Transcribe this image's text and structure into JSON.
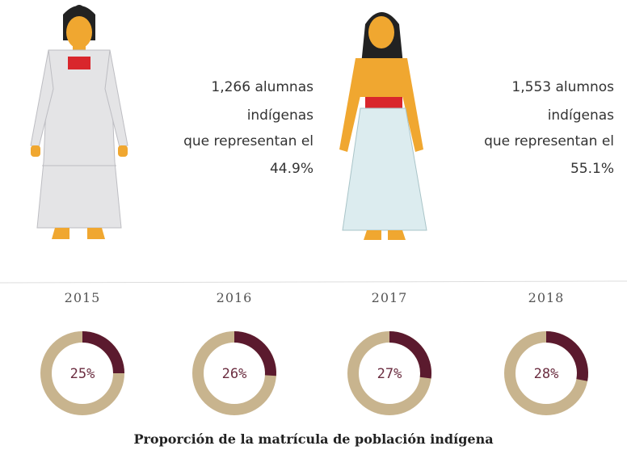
{
  "women": {
    "lines": [
      "1,266 alumnas",
      "indígenas",
      "que representan el",
      "44.9%"
    ]
  },
  "men": {
    "lines": [
      "1,553 alumnos",
      "indígenas",
      "que representan el",
      "55.1%"
    ]
  },
  "chart_data": [
    {
      "type": "donut",
      "title": "2015",
      "values": [
        25
      ],
      "value_labels": [
        "25%"
      ],
      "color": "#5b1a2e",
      "track_color": "#c8b48e"
    },
    {
      "type": "donut",
      "title": "2016",
      "values": [
        26
      ],
      "value_labels": [
        "26%"
      ],
      "color": "#5b1a2e",
      "track_color": "#c8b48e"
    },
    {
      "type": "donut",
      "title": "2017",
      "values": [
        27
      ],
      "value_labels": [
        "27%"
      ],
      "color": "#5b1a2e",
      "track_color": "#c8b48e"
    },
    {
      "type": "donut",
      "title": "2018",
      "values": [
        28
      ],
      "value_labels": [
        "28%"
      ],
      "color": "#5b1a2e",
      "track_color": "#c8b48e"
    }
  ],
  "caption": "Proporción de la matrícula de población indígena"
}
